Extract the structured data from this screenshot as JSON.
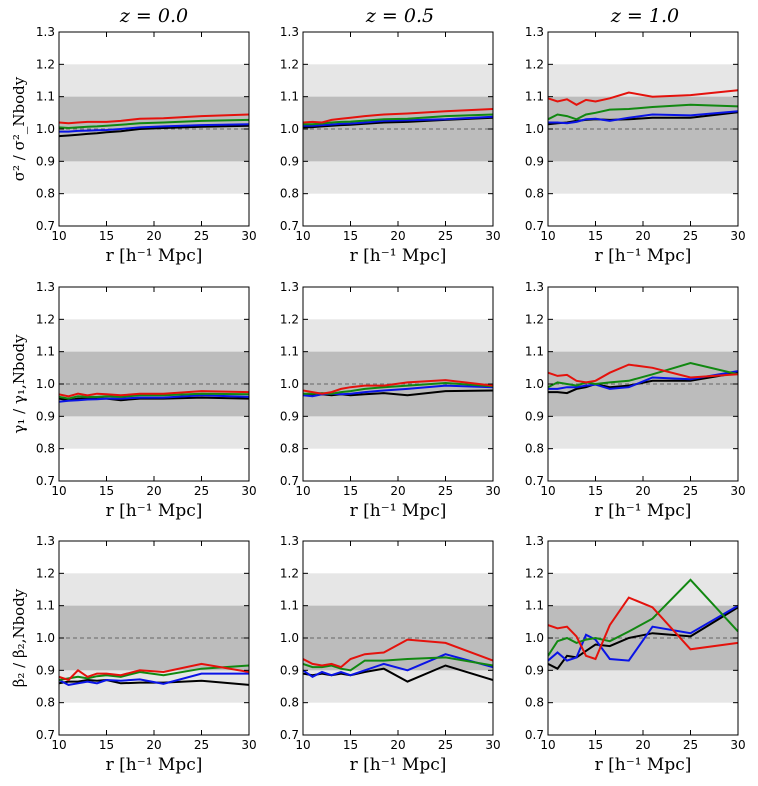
{
  "figure": {
    "column_titles": [
      "z = 0.0",
      "z = 0.5",
      "z = 1.0"
    ],
    "xlabel": "r [h⁻¹ Mpc]",
    "row_ylabels": [
      "σ² / σ²_Nbody",
      "γ₁ / γ₁,Nbody",
      "β₂ / β₂,Nbody"
    ],
    "xlim": [
      10,
      30
    ],
    "ylim": [
      0.7,
      1.3
    ],
    "xticks": [
      10,
      15,
      20,
      25,
      30
    ],
    "yticks": [
      0.7,
      0.8,
      0.9,
      1.0,
      1.1,
      1.2,
      1.3
    ],
    "ytick_labels": [
      "0.7",
      "0.8",
      "0.9",
      "1.0",
      "1.1",
      "1.2",
      "1.3"
    ],
    "inner_band": [
      0.9,
      1.1
    ],
    "outer_band": [
      0.8,
      1.2
    ],
    "reference_line": 1.0,
    "colors": {
      "black": "#000000",
      "blue": "#0a14e6",
      "green": "#118811",
      "red": "#e4120c",
      "inner_band": "#bcbcbc",
      "outer_band": "#e6e6e6",
      "reference": "#666666"
    }
  },
  "chart_data": [
    {
      "type": "line",
      "row": 0,
      "col": 0,
      "x": [
        10,
        11,
        12,
        13,
        14,
        15,
        16.5,
        18.5,
        21,
        25,
        30
      ],
      "series": [
        {
          "name": "black",
          "color": "#000000",
          "values": [
            0.978,
            0.98,
            0.982,
            0.985,
            0.987,
            0.99,
            0.993,
            1.0,
            1.003,
            1.007,
            1.01
          ]
        },
        {
          "name": "blue",
          "color": "#0a14e6",
          "values": [
            0.992,
            0.992,
            0.994,
            0.995,
            0.996,
            0.997,
            1.0,
            1.005,
            1.008,
            1.012,
            1.015
          ]
        },
        {
          "name": "green",
          "color": "#118811",
          "values": [
            1.005,
            1.003,
            1.005,
            1.007,
            1.008,
            1.01,
            1.013,
            1.018,
            1.02,
            1.025,
            1.028
          ]
        },
        {
          "name": "red",
          "color": "#e4120c",
          "values": [
            1.02,
            1.018,
            1.02,
            1.022,
            1.022,
            1.022,
            1.025,
            1.032,
            1.033,
            1.04,
            1.045
          ]
        }
      ]
    },
    {
      "type": "line",
      "row": 0,
      "col": 1,
      "x": [
        10,
        11,
        12,
        13,
        14,
        15,
        16.5,
        18.5,
        21,
        25,
        30
      ],
      "series": [
        {
          "name": "black",
          "color": "#000000",
          "values": [
            1.005,
            1.006,
            1.008,
            1.01,
            1.012,
            1.013,
            1.016,
            1.02,
            1.022,
            1.028,
            1.035
          ]
        },
        {
          "name": "blue",
          "color": "#0a14e6",
          "values": [
            1.01,
            1.01,
            1.012,
            1.014,
            1.016,
            1.017,
            1.02,
            1.025,
            1.027,
            1.03,
            1.038
          ]
        },
        {
          "name": "green",
          "color": "#118811",
          "values": [
            1.015,
            1.015,
            1.017,
            1.02,
            1.022,
            1.023,
            1.026,
            1.03,
            1.032,
            1.04,
            1.045
          ]
        },
        {
          "name": "red",
          "color": "#e4120c",
          "values": [
            1.02,
            1.022,
            1.02,
            1.028,
            1.032,
            1.035,
            1.04,
            1.045,
            1.048,
            1.055,
            1.062
          ]
        }
      ]
    },
    {
      "type": "line",
      "row": 0,
      "col": 2,
      "x": [
        10,
        11,
        12,
        13,
        14,
        15,
        16.5,
        18.5,
        21,
        25,
        30
      ],
      "series": [
        {
          "name": "black",
          "color": "#000000",
          "values": [
            1.015,
            1.018,
            1.02,
            1.025,
            1.028,
            1.03,
            1.028,
            1.03,
            1.035,
            1.035,
            1.052
          ]
        },
        {
          "name": "blue",
          "color": "#0a14e6",
          "values": [
            1.02,
            1.02,
            1.018,
            1.022,
            1.03,
            1.032,
            1.025,
            1.035,
            1.045,
            1.042,
            1.055
          ]
        },
        {
          "name": "green",
          "color": "#118811",
          "values": [
            1.03,
            1.045,
            1.04,
            1.03,
            1.045,
            1.05,
            1.06,
            1.062,
            1.068,
            1.075,
            1.07
          ]
        },
        {
          "name": "red",
          "color": "#e4120c",
          "values": [
            1.095,
            1.085,
            1.092,
            1.075,
            1.09,
            1.085,
            1.095,
            1.113,
            1.1,
            1.105,
            1.12
          ]
        }
      ]
    },
    {
      "type": "line",
      "row": 1,
      "col": 0,
      "x": [
        10,
        11,
        12,
        13,
        14,
        15,
        16.5,
        18.5,
        21,
        25,
        30
      ],
      "series": [
        {
          "name": "black",
          "color": "#000000",
          "values": [
            0.955,
            0.95,
            0.955,
            0.955,
            0.955,
            0.955,
            0.95,
            0.955,
            0.955,
            0.958,
            0.955
          ]
        },
        {
          "name": "blue",
          "color": "#0a14e6",
          "values": [
            0.945,
            0.948,
            0.95,
            0.952,
            0.953,
            0.955,
            0.955,
            0.958,
            0.958,
            0.965,
            0.96
          ]
        },
        {
          "name": "green",
          "color": "#118811",
          "values": [
            0.96,
            0.955,
            0.962,
            0.96,
            0.96,
            0.962,
            0.96,
            0.965,
            0.965,
            0.97,
            0.968
          ]
        },
        {
          "name": "red",
          "color": "#e4120c",
          "values": [
            0.968,
            0.962,
            0.97,
            0.965,
            0.97,
            0.968,
            0.965,
            0.97,
            0.97,
            0.978,
            0.975
          ]
        }
      ]
    },
    {
      "type": "line",
      "row": 1,
      "col": 1,
      "x": [
        10,
        11,
        12,
        13,
        14,
        15,
        16.5,
        18.5,
        21,
        25,
        30
      ],
      "series": [
        {
          "name": "black",
          "color": "#000000",
          "values": [
            0.97,
            0.965,
            0.968,
            0.965,
            0.968,
            0.965,
            0.968,
            0.972,
            0.965,
            0.978,
            0.98
          ]
        },
        {
          "name": "blue",
          "color": "#0a14e6",
          "values": [
            0.965,
            0.962,
            0.968,
            0.97,
            0.968,
            0.97,
            0.975,
            0.98,
            0.985,
            0.995,
            0.99
          ]
        },
        {
          "name": "green",
          "color": "#118811",
          "values": [
            0.97,
            0.97,
            0.972,
            0.97,
            0.975,
            0.978,
            0.985,
            0.99,
            0.995,
            1.003,
            0.993
          ]
        },
        {
          "name": "red",
          "color": "#e4120c",
          "values": [
            0.98,
            0.975,
            0.97,
            0.975,
            0.985,
            0.99,
            0.995,
            0.995,
            1.005,
            1.012,
            0.995
          ]
        }
      ]
    },
    {
      "type": "line",
      "row": 1,
      "col": 2,
      "x": [
        10,
        11,
        12,
        13,
        14,
        15,
        16.5,
        18.5,
        21,
        25,
        30
      ],
      "series": [
        {
          "name": "black",
          "color": "#000000",
          "values": [
            0.975,
            0.975,
            0.972,
            0.985,
            0.99,
            1.0,
            0.99,
            0.995,
            1.01,
            1.01,
            1.035
          ]
        },
        {
          "name": "blue",
          "color": "#0a14e6",
          "values": [
            0.985,
            0.985,
            0.99,
            0.99,
            0.995,
            0.998,
            0.985,
            0.99,
            1.02,
            1.015,
            1.04
          ]
        },
        {
          "name": "green",
          "color": "#118811",
          "values": [
            0.99,
            1.005,
            1.0,
            0.995,
            1.005,
            1.0,
            1.005,
            1.01,
            1.03,
            1.065,
            1.03
          ]
        },
        {
          "name": "red",
          "color": "#e4120c",
          "values": [
            1.035,
            1.025,
            1.028,
            1.01,
            1.005,
            1.01,
            1.035,
            1.06,
            1.05,
            1.02,
            1.03
          ]
        }
      ]
    },
    {
      "type": "line",
      "row": 2,
      "col": 0,
      "x": [
        10,
        11,
        12,
        13,
        14,
        15,
        16.5,
        18.5,
        21,
        25,
        30
      ],
      "series": [
        {
          "name": "black",
          "color": "#000000",
          "values": [
            0.86,
            0.865,
            0.865,
            0.87,
            0.868,
            0.87,
            0.86,
            0.862,
            0.862,
            0.868,
            0.855
          ]
        },
        {
          "name": "blue",
          "color": "#0a14e6",
          "values": [
            0.87,
            0.855,
            0.86,
            0.865,
            0.86,
            0.87,
            0.868,
            0.872,
            0.858,
            0.89,
            0.89
          ]
        },
        {
          "name": "green",
          "color": "#118811",
          "values": [
            0.87,
            0.875,
            0.88,
            0.875,
            0.882,
            0.885,
            0.88,
            0.895,
            0.885,
            0.905,
            0.915
          ]
        },
        {
          "name": "red",
          "color": "#e4120c",
          "values": [
            0.88,
            0.87,
            0.9,
            0.88,
            0.89,
            0.89,
            0.885,
            0.9,
            0.895,
            0.92,
            0.895
          ]
        }
      ]
    },
    {
      "type": "line",
      "row": 2,
      "col": 1,
      "x": [
        10,
        11,
        12,
        13,
        14,
        15,
        16.5,
        18.5,
        21,
        25,
        30
      ],
      "series": [
        {
          "name": "black",
          "color": "#000000",
          "values": [
            0.89,
            0.885,
            0.89,
            0.885,
            0.89,
            0.885,
            0.895,
            0.905,
            0.865,
            0.915,
            0.87
          ]
        },
        {
          "name": "blue",
          "color": "#0a14e6",
          "values": [
            0.9,
            0.88,
            0.895,
            0.885,
            0.895,
            0.885,
            0.9,
            0.92,
            0.9,
            0.95,
            0.91
          ]
        },
        {
          "name": "green",
          "color": "#118811",
          "values": [
            0.92,
            0.91,
            0.91,
            0.915,
            0.905,
            0.9,
            0.93,
            0.93,
            0.935,
            0.94,
            0.915
          ]
        },
        {
          "name": "red",
          "color": "#e4120c",
          "values": [
            0.935,
            0.92,
            0.915,
            0.92,
            0.91,
            0.935,
            0.95,
            0.955,
            0.995,
            0.985,
            0.93
          ]
        }
      ]
    },
    {
      "type": "line",
      "row": 2,
      "col": 2,
      "x": [
        10,
        11,
        12,
        13,
        14,
        15,
        16.5,
        18.5,
        21,
        25,
        30
      ],
      "series": [
        {
          "name": "black",
          "color": "#000000",
          "values": [
            0.92,
            0.905,
            0.945,
            0.94,
            0.96,
            0.98,
            0.975,
            1.0,
            1.015,
            1.005,
            1.095
          ]
        },
        {
          "name": "blue",
          "color": "#0a14e6",
          "values": [
            0.93,
            0.955,
            0.93,
            0.94,
            1.01,
            0.995,
            0.935,
            0.93,
            1.035,
            1.015,
            1.1
          ]
        },
        {
          "name": "green",
          "color": "#118811",
          "values": [
            0.945,
            0.99,
            1.0,
            0.985,
            0.995,
            1.0,
            0.99,
            1.02,
            1.06,
            1.18,
            1.02
          ]
        },
        {
          "name": "red",
          "color": "#e4120c",
          "values": [
            1.04,
            1.03,
            1.035,
            1.005,
            0.945,
            0.935,
            1.04,
            1.125,
            1.095,
            0.965,
            0.985
          ]
        }
      ]
    }
  ]
}
